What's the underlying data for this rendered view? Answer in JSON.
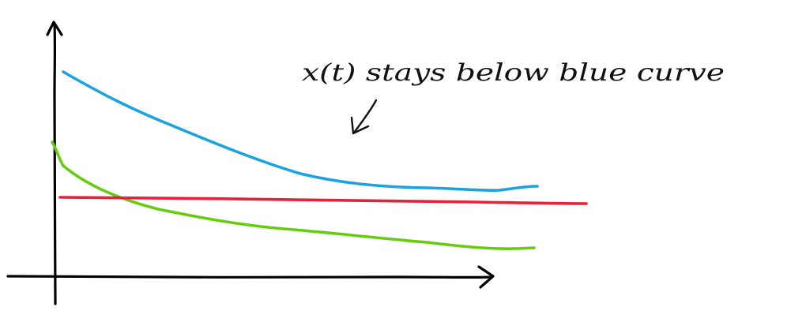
{
  "annotation": {
    "text": "x(t) stays below blue curve"
  },
  "curves": [
    {
      "id": "blue-curve",
      "color": "#1aa3e0"
    },
    {
      "id": "green-curve",
      "color": "#66cc11"
    },
    {
      "id": "red-line",
      "color": "#e8213b"
    }
  ],
  "axes": {
    "color": "#000000"
  }
}
